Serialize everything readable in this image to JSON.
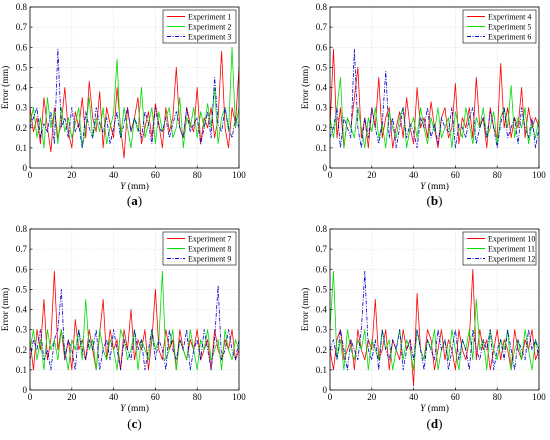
{
  "chart_data": [
    {
      "panel_label": "(a)",
      "type": "line",
      "xlabel_var": "Y",
      "xlabel_unit": " (mm)",
      "ylabel": "Error (mm)",
      "xlim": [
        0,
        100
      ],
      "ylim": [
        0,
        0.8
      ],
      "xticks": [
        0,
        20,
        40,
        60,
        80,
        100
      ],
      "yticks": [
        0,
        0.1,
        0.2,
        0.3,
        0.4,
        0.5,
        0.6,
        0.7,
        0.8
      ],
      "grid": true,
      "legend_position": "top-right",
      "series": [
        {
          "name": "Experiment 1",
          "color": "#ff0000",
          "dash": "solid",
          "values": [
            0.3,
            0.18,
            0.25,
            0.12,
            0.35,
            0.2,
            0.08,
            0.3,
            0.15,
            0.22,
            0.4,
            0.18,
            0.1,
            0.28,
            0.2,
            0.35,
            0.15,
            0.43,
            0.25,
            0.18,
            0.38,
            0.1,
            0.3,
            0.22,
            0.15,
            0.4,
            0.2,
            0.05,
            0.3,
            0.18,
            0.25,
            0.35,
            0.12,
            0.2,
            0.28,
            0.15,
            0.32,
            0.22,
            0.1,
            0.3,
            0.18,
            0.25,
            0.5,
            0.2,
            0.15,
            0.3,
            0.22,
            0.18,
            0.4,
            0.12,
            0.25,
            0.2,
            0.3,
            0.15,
            0.25,
            0.58,
            0.2,
            0.1,
            0.3,
            0.22,
            0.5
          ]
        },
        {
          "name": "Experiment 2",
          "color": "#00dd00",
          "dash": "solid",
          "values": [
            0.22,
            0.3,
            0.15,
            0.25,
            0.1,
            0.35,
            0.2,
            0.28,
            0.12,
            0.3,
            0.18,
            0.25,
            0.15,
            0.22,
            0.3,
            0.1,
            0.2,
            0.35,
            0.15,
            0.25,
            0.18,
            0.3,
            0.12,
            0.2,
            0.27,
            0.54,
            0.15,
            0.3,
            0.2,
            0.1,
            0.25,
            0.18,
            0.4,
            0.15,
            0.22,
            0.3,
            0.12,
            0.28,
            0.18,
            0.25,
            0.3,
            0.15,
            0.2,
            0.35,
            0.1,
            0.25,
            0.2,
            0.3,
            0.15,
            0.28,
            0.2,
            0.32,
            0.2,
            0.4,
            0.12,
            0.25,
            0.3,
            0.18,
            0.6,
            0.2,
            0.3
          ]
        },
        {
          "name": "Experiment 3",
          "color": "#0000cc",
          "dash": "dashdot",
          "values": [
            0.2,
            0.25,
            0.3,
            0.15,
            0.22,
            0.18,
            0.28,
            0.12,
            0.59,
            0.2,
            0.25,
            0.15,
            0.3,
            0.18,
            0.22,
            0.1,
            0.28,
            0.2,
            0.15,
            0.3,
            0.22,
            0.18,
            0.25,
            0.12,
            0.2,
            0.28,
            0.15,
            0.22,
            0.3,
            0.18,
            0.25,
            0.2,
            0.15,
            0.28,
            0.22,
            0.12,
            0.3,
            0.2,
            0.18,
            0.25,
            0.15,
            0.22,
            0.28,
            0.2,
            0.15,
            0.3,
            0.18,
            0.22,
            0.25,
            0.12,
            0.2,
            0.28,
            0.15,
            0.45,
            0.22,
            0.18,
            0.3,
            0.2,
            0.15,
            0.25,
            0.2
          ]
        }
      ]
    },
    {
      "panel_label": "(b)",
      "type": "line",
      "xlabel_var": "Y",
      "xlabel_unit": " (mm)",
      "ylabel": "Error (mm)",
      "xlim": [
        0,
        100
      ],
      "ylim": [
        0,
        0.8
      ],
      "xticks": [
        0,
        20,
        40,
        60,
        80,
        100
      ],
      "yticks": [
        0,
        0.1,
        0.2,
        0.3,
        0.4,
        0.5,
        0.6,
        0.7,
        0.8
      ],
      "grid": true,
      "legend_position": "top-right",
      "series": [
        {
          "name": "Experiment 4",
          "color": "#ff0000",
          "dash": "solid",
          "values": [
            0.2,
            0.59,
            0.15,
            0.3,
            0.1,
            0.25,
            0.2,
            0.35,
            0.5,
            0.15,
            0.25,
            0.1,
            0.3,
            0.2,
            0.45,
            0.15,
            0.25,
            0.3,
            0.1,
            0.2,
            0.28,
            0.15,
            0.35,
            0.2,
            0.12,
            0.4,
            0.2,
            0.25,
            0.15,
            0.33,
            0.2,
            0.1,
            0.25,
            0.3,
            0.15,
            0.2,
            0.42,
            0.12,
            0.25,
            0.2,
            0.3,
            0.15,
            0.45,
            0.2,
            0.25,
            0.1,
            0.3,
            0.2,
            0.15,
            0.52,
            0.2,
            0.3,
            0.15,
            0.25,
            0.2,
            0.4,
            0.15,
            0.3,
            0.2,
            0.25,
            0.2
          ]
        },
        {
          "name": "Experiment 5",
          "color": "#00dd00",
          "dash": "solid",
          "values": [
            0.25,
            0.15,
            0.3,
            0.45,
            0.1,
            0.25,
            0.2,
            0.15,
            0.3,
            0.2,
            0.1,
            0.25,
            0.18,
            0.3,
            0.15,
            0.22,
            0.1,
            0.28,
            0.2,
            0.15,
            0.25,
            0.3,
            0.1,
            0.2,
            0.25,
            0.15,
            0.3,
            0.2,
            0.12,
            0.25,
            0.18,
            0.3,
            0.15,
            0.2,
            0.25,
            0.1,
            0.28,
            0.2,
            0.15,
            0.3,
            0.22,
            0.12,
            0.25,
            0.2,
            0.3,
            0.15,
            0.2,
            0.28,
            0.12,
            0.25,
            0.3,
            0.2,
            0.41,
            0.15,
            0.25,
            0.2,
            0.3,
            0.12,
            0.22,
            0.15,
            0.25
          ]
        },
        {
          "name": "Experiment 6",
          "color": "#0000cc",
          "dash": "dashdot",
          "values": [
            0.15,
            0.2,
            0.3,
            0.1,
            0.25,
            0.2,
            0.15,
            0.59,
            0.2,
            0.1,
            0.25,
            0.15,
            0.3,
            0.2,
            0.12,
            0.22,
            0.48,
            0.15,
            0.25,
            0.1,
            0.2,
            0.3,
            0.15,
            0.22,
            0.18,
            0.1,
            0.25,
            0.2,
            0.3,
            0.15,
            0.22,
            0.12,
            0.25,
            0.2,
            0.18,
            0.3,
            0.1,
            0.22,
            0.2,
            0.15,
            0.25,
            0.3,
            0.12,
            0.2,
            0.25,
            0.15,
            0.28,
            0.2,
            0.1,
            0.22,
            0.3,
            0.15,
            0.2,
            0.25,
            0.12,
            0.3,
            0.2,
            0.15,
            0.25,
            0.1,
            0.2
          ]
        }
      ]
    },
    {
      "panel_label": "(c)",
      "type": "line",
      "xlabel_var": "Y",
      "xlabel_unit": " (mm)",
      "ylabel": "Error (mm)",
      "xlim": [
        0,
        100
      ],
      "ylim": [
        0,
        0.8
      ],
      "xticks": [
        0,
        20,
        40,
        60,
        80,
        100
      ],
      "yticks": [
        0,
        0.1,
        0.2,
        0.3,
        0.4,
        0.5,
        0.6,
        0.7,
        0.8
      ],
      "grid": true,
      "legend_position": "top-right",
      "series": [
        {
          "name": "Experiment 7",
          "color": "#ff0000",
          "dash": "solid",
          "values": [
            0.25,
            0.1,
            0.3,
            0.2,
            0.45,
            0.15,
            0.25,
            0.59,
            0.2,
            0.3,
            0.15,
            0.25,
            0.1,
            0.35,
            0.2,
            0.25,
            0.15,
            0.3,
            0.2,
            0.1,
            0.28,
            0.45,
            0.15,
            0.3,
            0.2,
            0.25,
            0.1,
            0.3,
            0.2,
            0.4,
            0.15,
            0.25,
            0.2,
            0.3,
            0.1,
            0.25,
            0.5,
            0.2,
            0.15,
            0.3,
            0.2,
            0.25,
            0.1,
            0.3,
            0.2,
            0.15,
            0.25,
            0.2,
            0.3,
            0.15,
            0.2,
            0.25,
            0.1,
            0.3,
            0.2,
            0.15,
            0.25,
            0.2,
            0.3,
            0.15,
            0.2
          ]
        },
        {
          "name": "Experiment 8",
          "color": "#00dd00",
          "dash": "solid",
          "values": [
            0.2,
            0.3,
            0.15,
            0.25,
            0.1,
            0.3,
            0.2,
            0.25,
            0.15,
            0.3,
            0.2,
            0.1,
            0.25,
            0.2,
            0.3,
            0.15,
            0.45,
            0.2,
            0.25,
            0.1,
            0.3,
            0.2,
            0.15,
            0.25,
            0.2,
            0.1,
            0.3,
            0.25,
            0.15,
            0.2,
            0.3,
            0.1,
            0.25,
            0.2,
            0.15,
            0.3,
            0.2,
            0.25,
            0.59,
            0.15,
            0.2,
            0.3,
            0.1,
            0.25,
            0.2,
            0.15,
            0.3,
            0.2,
            0.1,
            0.25,
            0.2,
            0.3,
            0.15,
            0.2,
            0.25,
            0.1,
            0.3,
            0.2,
            0.15,
            0.25,
            0.2
          ]
        },
        {
          "name": "Experiment 9",
          "color": "#0000cc",
          "dash": "dashdot",
          "values": [
            0.15,
            0.25,
            0.2,
            0.3,
            0.15,
            0.2,
            0.1,
            0.25,
            0.3,
            0.5,
            0.15,
            0.25,
            0.2,
            0.1,
            0.3,
            0.2,
            0.15,
            0.25,
            0.2,
            0.3,
            0.1,
            0.2,
            0.25,
            0.15,
            0.3,
            0.2,
            0.1,
            0.25,
            0.2,
            0.15,
            0.3,
            0.2,
            0.25,
            0.1,
            0.2,
            0.3,
            0.15,
            0.25,
            0.2,
            0.1,
            0.3,
            0.2,
            0.15,
            0.25,
            0.2,
            0.3,
            0.1,
            0.2,
            0.25,
            0.15,
            0.3,
            0.2,
            0.1,
            0.25,
            0.52,
            0.15,
            0.2,
            0.3,
            0.2,
            0.15,
            0.25
          ]
        }
      ]
    },
    {
      "panel_label": "(d)",
      "type": "line",
      "xlabel_var": "Y",
      "xlabel_unit": " (mm)",
      "ylabel": "Error (mm)",
      "xlim": [
        0,
        100
      ],
      "ylim": [
        0,
        0.8
      ],
      "xticks": [
        0,
        20,
        40,
        60,
        80,
        100
      ],
      "yticks": [
        0,
        0.1,
        0.2,
        0.3,
        0.4,
        0.5,
        0.6,
        0.7,
        0.8
      ],
      "grid": true,
      "legend_position": "top-right",
      "series": [
        {
          "name": "Experiment 10",
          "color": "#ff0000",
          "dash": "solid",
          "values": [
            0.2,
            0.1,
            0.25,
            0.3,
            0.15,
            0.2,
            0.25,
            0.1,
            0.3,
            0.2,
            0.15,
            0.25,
            0.2,
            0.45,
            0.15,
            0.2,
            0.3,
            0.1,
            0.25,
            0.2,
            0.15,
            0.3,
            0.2,
            0.25,
            0.02,
            0.48,
            0.2,
            0.15,
            0.3,
            0.25,
            0.1,
            0.2,
            0.3,
            0.15,
            0.25,
            0.2,
            0.1,
            0.3,
            0.2,
            0.15,
            0.25,
            0.6,
            0.15,
            0.3,
            0.2,
            0.25,
            0.1,
            0.2,
            0.3,
            0.15,
            0.25,
            0.2,
            0.1,
            0.3,
            0.2,
            0.15,
            0.25,
            0.2,
            0.3,
            0.15,
            0.2
          ]
        },
        {
          "name": "Experiment 11",
          "color": "#00dd00",
          "dash": "solid",
          "values": [
            0.3,
            0.59,
            0.15,
            0.25,
            0.1,
            0.3,
            0.2,
            0.15,
            0.25,
            0.2,
            0.3,
            0.1,
            0.25,
            0.2,
            0.15,
            0.3,
            0.2,
            0.25,
            0.1,
            0.2,
            0.3,
            0.15,
            0.25,
            0.2,
            0.1,
            0.3,
            0.2,
            0.15,
            0.25,
            0.2,
            0.3,
            0.1,
            0.2,
            0.25,
            0.15,
            0.3,
            0.2,
            0.1,
            0.25,
            0.2,
            0.3,
            0.15,
            0.45,
            0.2,
            0.25,
            0.1,
            0.3,
            0.2,
            0.15,
            0.25,
            0.2,
            0.3,
            0.1,
            0.2,
            0.25,
            0.15,
            0.3,
            0.2,
            0.1,
            0.25,
            0.2
          ]
        },
        {
          "name": "Experiment 12",
          "color": "#0000cc",
          "dash": "dashdot",
          "values": [
            0.2,
            0.25,
            0.15,
            0.3,
            0.2,
            0.1,
            0.25,
            0.2,
            0.15,
            0.3,
            0.59,
            0.2,
            0.15,
            0.25,
            0.1,
            0.3,
            0.2,
            0.15,
            0.25,
            0.2,
            0.3,
            0.1,
            0.2,
            0.25,
            0.15,
            0.3,
            0.2,
            0.1,
            0.25,
            0.2,
            0.15,
            0.3,
            0.2,
            0.25,
            0.1,
            0.2,
            0.3,
            0.15,
            0.25,
            0.2,
            0.1,
            0.3,
            0.2,
            0.15,
            0.25,
            0.2,
            0.3,
            0.1,
            0.2,
            0.25,
            0.15,
            0.3,
            0.2,
            0.1,
            0.25,
            0.2,
            0.15,
            0.3,
            0.2,
            0.25,
            0.15
          ]
        }
      ]
    }
  ]
}
